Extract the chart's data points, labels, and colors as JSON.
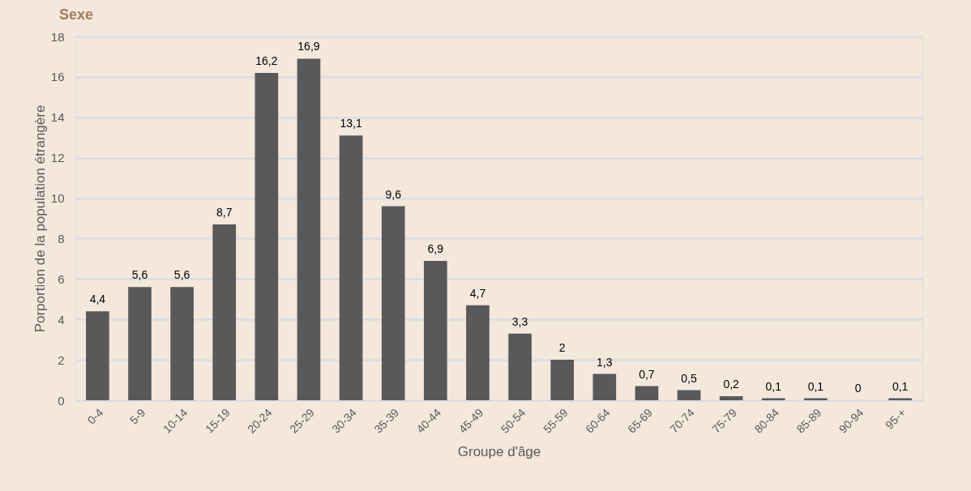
{
  "chart_data": {
    "type": "bar",
    "title": "Sexe",
    "xlabel": "Groupe d'âge",
    "ylabel": "Porportion de la population étrangère",
    "categories": [
      "0-4",
      "5-9",
      "10-14",
      "15-19",
      "20-24",
      "25-29",
      "30-34",
      "35-39",
      "40-44",
      "45-49",
      "50-54",
      "55-59",
      "60-64",
      "65-69",
      "70-74",
      "75-79",
      "80-84",
      "85-89",
      "90-94",
      "95-+"
    ],
    "values": [
      4.4,
      5.6,
      5.6,
      8.7,
      16.2,
      16.9,
      13.1,
      9.6,
      6.9,
      4.7,
      3.3,
      2,
      1.3,
      0.7,
      0.5,
      0.2,
      0.1,
      0.1,
      0,
      0.1
    ],
    "value_labels": [
      "4,4",
      "5,6",
      "5,6",
      "8,7",
      "16,2",
      "16,9",
      "13,1",
      "9,6",
      "6,9",
      "4,7",
      "3,3",
      "2",
      "1,3",
      "0,7",
      "0,5",
      "0,2",
      "0,1",
      "0,1",
      "0",
      "0,1"
    ],
    "color": "#595959",
    "ylim": [
      0,
      18
    ],
    "yticks": [
      0,
      2,
      4,
      6,
      8,
      10,
      12,
      14,
      16,
      18
    ],
    "grid": "y"
  }
}
